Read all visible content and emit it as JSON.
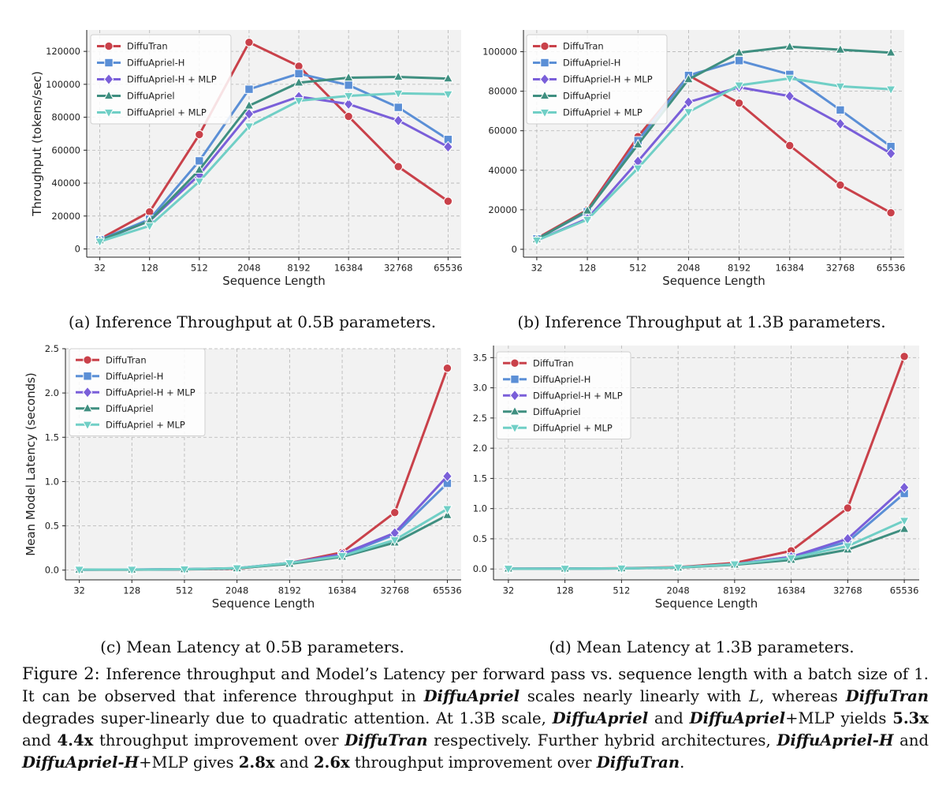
{
  "series_styles": [
    {
      "name": "DiffuTran",
      "color": "#c9414a",
      "marker": "circle"
    },
    {
      "name": "DiffuApriel-H",
      "color": "#5b8fd6",
      "marker": "square"
    },
    {
      "name": "DiffuApriel-H + MLP",
      "color": "#7a5fd9",
      "marker": "diamond"
    },
    {
      "name": "DiffuApriel",
      "color": "#3f8f80",
      "marker": "triangle-up"
    },
    {
      "name": "DiffuApriel + MLP",
      "color": "#70cfc6",
      "marker": "triangle-down"
    }
  ],
  "chart_data": [
    {
      "type": "line",
      "xlabel": "Sequence Length",
      "ylabel": "Throughput (tokens/sec)",
      "categories": [
        "32",
        "128",
        "512",
        "2048",
        "8192",
        "16384",
        "32768",
        "65536"
      ],
      "ylim": [
        -5000,
        133000
      ],
      "yticks": [
        0,
        20000,
        40000,
        60000,
        80000,
        100000,
        120000
      ],
      "legend": "upper-left",
      "grid": true,
      "caption": "(a) Inference Throughput at 0.5B parameters.",
      "series": [
        {
          "name": "DiffuTran",
          "values": [
            6000,
            22500,
            69500,
            125500,
            111000,
            80500,
            50000,
            29000
          ]
        },
        {
          "name": "DiffuApriel-H",
          "values": [
            5500,
            18000,
            53500,
            97000,
            106500,
            99500,
            86000,
            66500
          ]
        },
        {
          "name": "DiffuApriel-H + MLP",
          "values": [
            5000,
            17000,
            45000,
            82000,
            92500,
            88000,
            78000,
            62000
          ]
        },
        {
          "name": "DiffuApriel",
          "values": [
            5200,
            17000,
            48000,
            87000,
            101000,
            104000,
            104500,
            103500
          ]
        },
        {
          "name": "DiffuApriel + MLP",
          "values": [
            4500,
            14000,
            41000,
            74500,
            90000,
            93000,
            94500,
            94000
          ]
        }
      ]
    },
    {
      "type": "line",
      "xlabel": "Sequence Length",
      "ylabel": "",
      "categories": [
        "32",
        "128",
        "512",
        "2048",
        "8192",
        "16384",
        "32768",
        "65536"
      ],
      "ylim": [
        -4000,
        111000
      ],
      "yticks": [
        0,
        20000,
        40000,
        60000,
        80000,
        100000
      ],
      "legend": "upper-left",
      "grid": true,
      "caption": "(b) Inference Throughput at 1.3B parameters.",
      "series": [
        {
          "name": "DiffuTran",
          "values": [
            5500,
            20000,
            57000,
            88000,
            74000,
            52500,
            32500,
            18500
          ]
        },
        {
          "name": "DiffuApriel-H",
          "values": [
            5200,
            19000,
            55000,
            88000,
            95500,
            88500,
            70500,
            52000
          ]
        },
        {
          "name": "DiffuApriel-H + MLP",
          "values": [
            4500,
            15500,
            44500,
            74500,
            82000,
            77500,
            63500,
            48500
          ]
        },
        {
          "name": "DiffuApriel",
          "values": [
            5000,
            19500,
            53000,
            86000,
            99500,
            102500,
            101000,
            99500
          ]
        },
        {
          "name": "DiffuApriel + MLP",
          "values": [
            4500,
            15000,
            41000,
            69500,
            83000,
            86500,
            82500,
            81000
          ]
        }
      ]
    },
    {
      "type": "line",
      "xlabel": "Sequence Length",
      "ylabel": "Mean Model Latency (seconds)",
      "categories": [
        "32",
        "128",
        "512",
        "2048",
        "8192",
        "16384",
        "32768",
        "65536"
      ],
      "ylim": [
        -0.11,
        2.5
      ],
      "yticks": [
        0.0,
        0.5,
        1.0,
        1.5,
        2.0,
        2.5
      ],
      "ytick_labels": [
        "0.0",
        "0.5",
        "1.0",
        "1.5",
        "2.0",
        "2.5"
      ],
      "legend": "upper-left",
      "grid": true,
      "caption": "(c) Mean Latency at 0.5B parameters.",
      "series": [
        {
          "name": "DiffuTran",
          "values": [
            0.005,
            0.005,
            0.008,
            0.016,
            0.08,
            0.2,
            0.65,
            2.28
          ]
        },
        {
          "name": "DiffuApriel-H",
          "values": [
            0.005,
            0.006,
            0.01,
            0.02,
            0.08,
            0.17,
            0.4,
            0.98
          ]
        },
        {
          "name": "DiffuApriel-H + MLP",
          "values": [
            0.005,
            0.006,
            0.01,
            0.021,
            0.08,
            0.18,
            0.42,
            1.06
          ]
        },
        {
          "name": "DiffuApriel",
          "values": [
            0.005,
            0.005,
            0.009,
            0.02,
            0.07,
            0.15,
            0.31,
            0.62
          ]
        },
        {
          "name": "DiffuApriel + MLP",
          "values": [
            0.005,
            0.006,
            0.01,
            0.022,
            0.08,
            0.16,
            0.34,
            0.69
          ]
        }
      ]
    },
    {
      "type": "line",
      "xlabel": "Sequence Length",
      "ylabel": "",
      "categories": [
        "32",
        "128",
        "512",
        "2048",
        "8192",
        "16384",
        "32768",
        "65536"
      ],
      "ylim": [
        -0.18,
        3.7
      ],
      "yticks": [
        0.0,
        0.5,
        1.0,
        1.5,
        2.0,
        2.5,
        3.0,
        3.5
      ],
      "ytick_labels": [
        "0.0",
        "0.5",
        "1.0",
        "1.5",
        "2.0",
        "2.5",
        "3.0",
        "3.5"
      ],
      "legend": "upper-left",
      "grid": true,
      "caption": "(d) Mean Latency at 1.3B parameters.",
      "series": [
        {
          "name": "DiffuTran",
          "values": [
            0.005,
            0.006,
            0.012,
            0.03,
            0.1,
            0.3,
            1.01,
            3.52
          ]
        },
        {
          "name": "DiffuApriel-H",
          "values": [
            0.005,
            0.006,
            0.01,
            0.025,
            0.08,
            0.2,
            0.45,
            1.25
          ]
        },
        {
          "name": "DiffuApriel-H + MLP",
          "values": [
            0.005,
            0.006,
            0.01,
            0.025,
            0.08,
            0.2,
            0.5,
            1.35
          ]
        },
        {
          "name": "DiffuApriel",
          "values": [
            0.005,
            0.005,
            0.01,
            0.022,
            0.07,
            0.15,
            0.32,
            0.66
          ]
        },
        {
          "name": "DiffuApriel + MLP",
          "values": [
            0.005,
            0.005,
            0.01,
            0.025,
            0.08,
            0.18,
            0.38,
            0.8
          ]
        }
      ]
    }
  ],
  "figure_caption": {
    "p1": "Figure 2: ",
    "p2": "Inference throughput and Model’s Latency per forward pass vs. sequence length with a batch size of 1. It can be observed that inference throughput in ",
    "b1": "DiffuApriel",
    "p3": " scales nearly linearly with ",
    "m1": "L",
    "p4": ", whereas ",
    "b2": "DiffuTran",
    "p5": " degrades super-linearly due to quadratic attention. At 1.3B scale, ",
    "b3": "DiffuApriel",
    "p6": " and ",
    "b4": "DiffuApriel",
    "p7": "+MLP yields ",
    "n1": "5.3x",
    "p8": " and ",
    "n2": "4.4x",
    "p9": " throughput improvement over ",
    "b5": "DiffuTran",
    "p10": " respectively. Further hybrid architectures, ",
    "b6": "DiffuApriel-H",
    "p11": " and ",
    "b7": "DiffuApriel-H",
    "p12": "+MLP gives ",
    "n3": "2.8x",
    "p13": " and ",
    "n4": "2.6x",
    "p14": " throughput improvement over ",
    "b8": "DiffuTran",
    "p15": "."
  }
}
